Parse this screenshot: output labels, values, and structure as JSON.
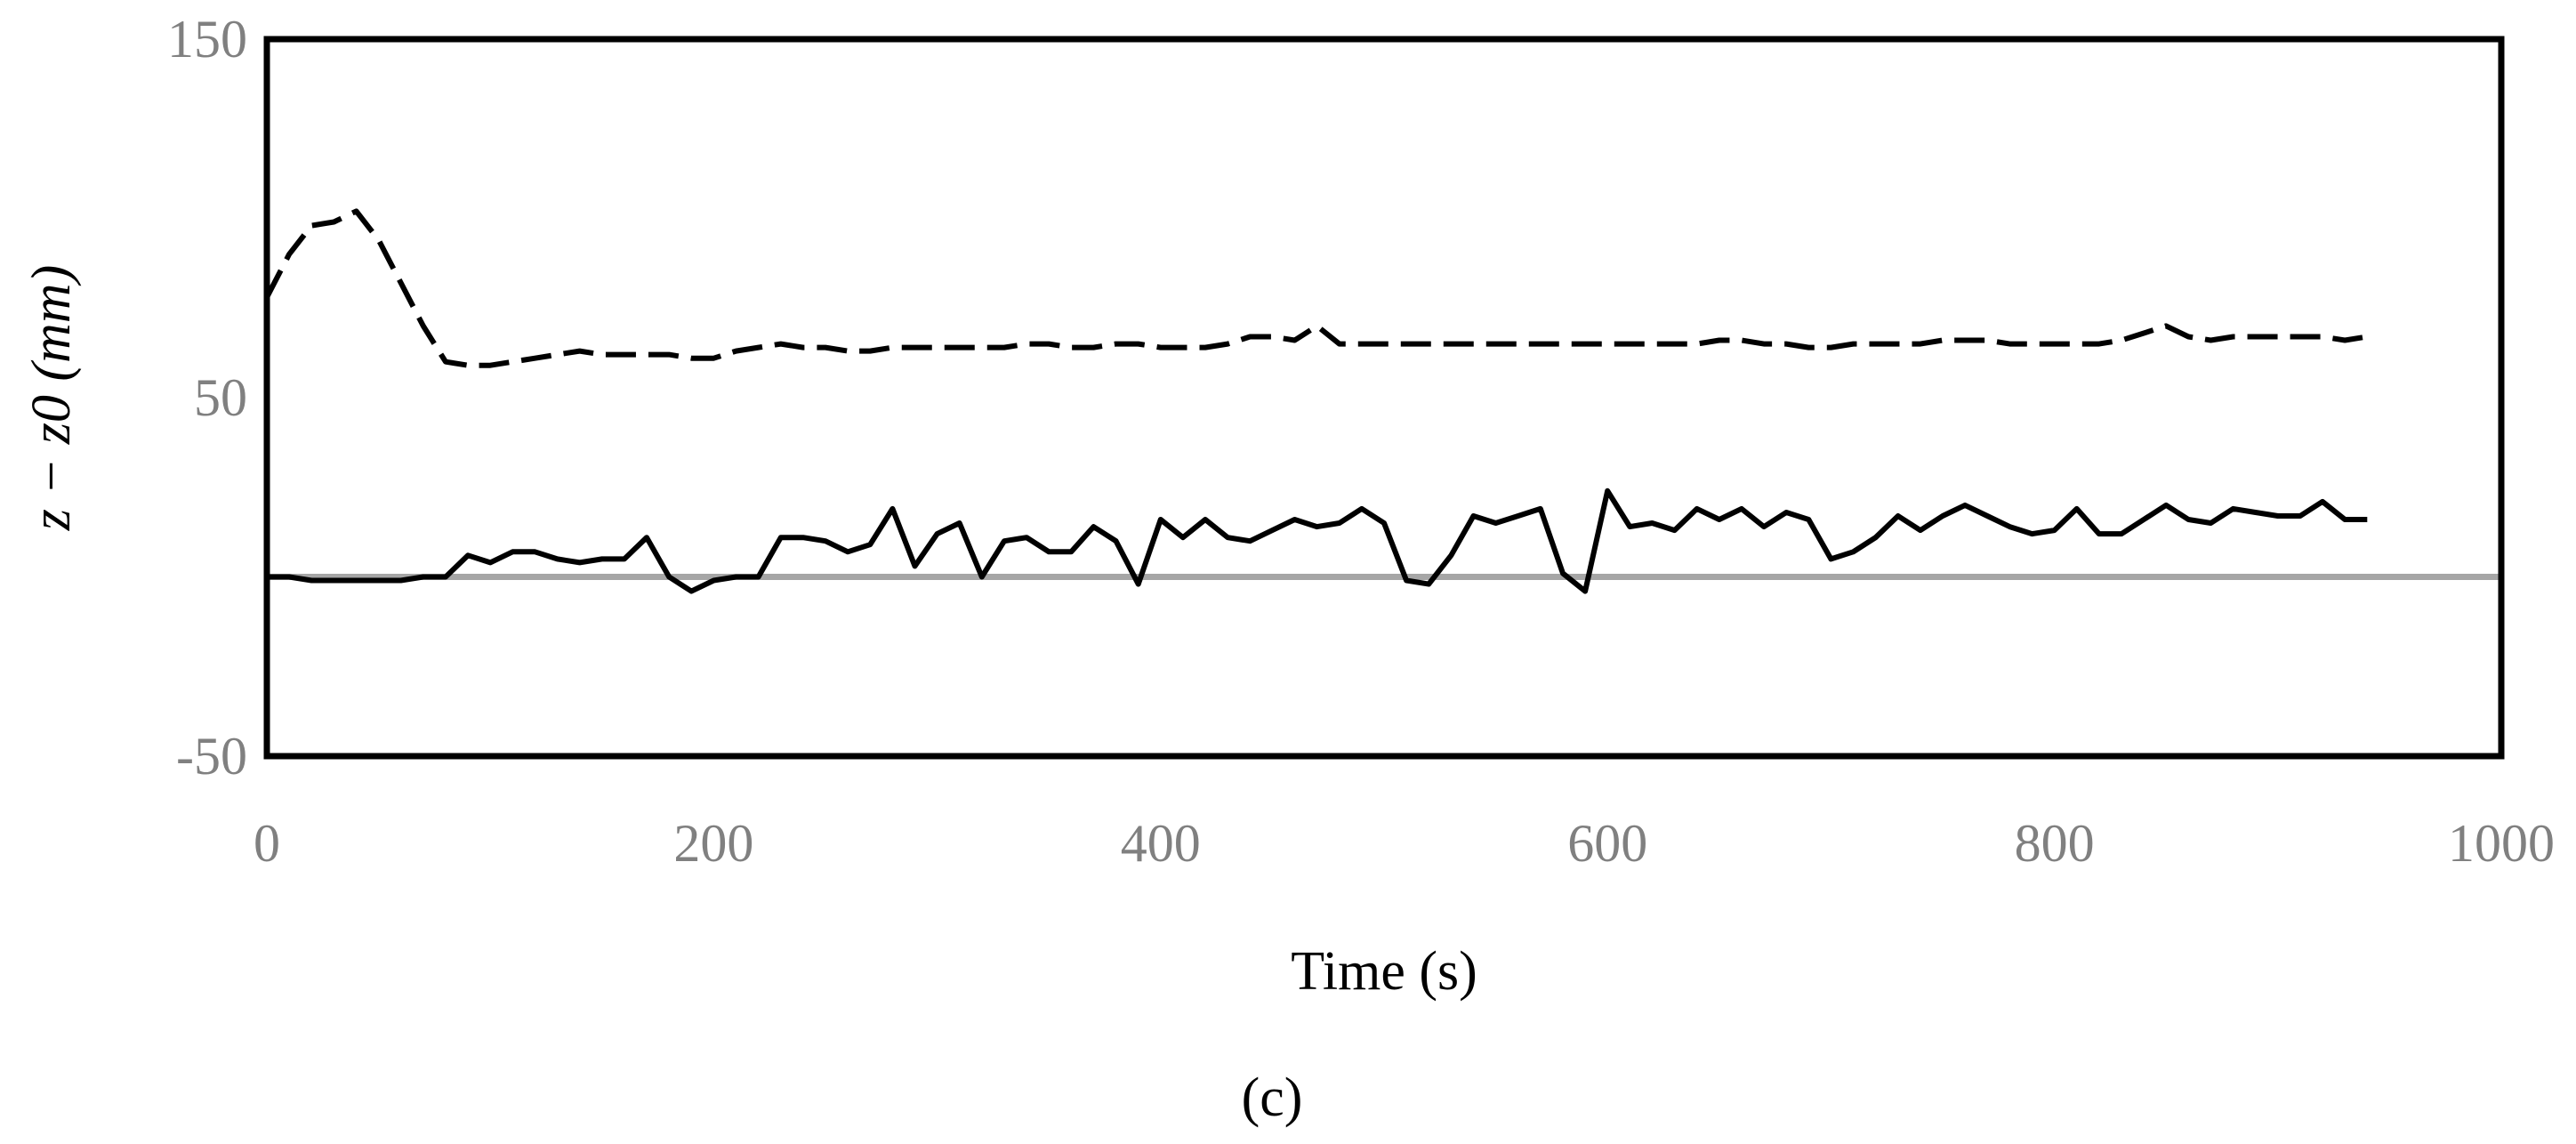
{
  "panel_label": "(c)",
  "chart_data": {
    "type": "line",
    "xlabel": "Time (s)",
    "ylabel": "z − z0 (mm)",
    "xlim": [
      0,
      1000
    ],
    "ylim": [
      -50,
      150
    ],
    "x_ticks": [
      "0",
      "200",
      "400",
      "600",
      "800",
      "1000"
    ],
    "y_ticks": [
      "-50",
      "50",
      "150"
    ],
    "grid": false,
    "series": [
      {
        "style": "dashed",
        "color": "#000000",
        "x": [
          0,
          10,
          20,
          30,
          40,
          50,
          60,
          70,
          80,
          90,
          100,
          110,
          120,
          130,
          140,
          150,
          160,
          170,
          180,
          190,
          200,
          210,
          220,
          230,
          240,
          250,
          260,
          270,
          280,
          290,
          300,
          310,
          320,
          330,
          340,
          350,
          360,
          370,
          380,
          390,
          400,
          410,
          420,
          430,
          440,
          450,
          460,
          470,
          480,
          490,
          500,
          510,
          520,
          530,
          540,
          550,
          560,
          570,
          580,
          590,
          600,
          610,
          620,
          630,
          640,
          650,
          660,
          670,
          680,
          690,
          700,
          710,
          720,
          730,
          740,
          750,
          760,
          770,
          780,
          790,
          800,
          810,
          820,
          830,
          840,
          850,
          860,
          870,
          880,
          890,
          900,
          910,
          920,
          930,
          940
        ],
        "values": [
          78,
          90,
          98,
          99,
          102,
          94,
          82,
          70,
          60,
          59,
          59,
          60,
          61,
          62,
          63,
          62,
          62,
          62,
          62,
          61,
          61,
          63,
          64,
          65,
          64,
          64,
          63,
          63,
          64,
          64,
          64,
          64,
          64,
          64,
          65,
          65,
          64,
          64,
          65,
          65,
          64,
          64,
          64,
          65,
          67,
          67,
          66,
          70,
          65,
          65,
          65,
          65,
          65,
          65,
          65,
          65,
          65,
          65,
          65,
          65,
          65,
          65,
          65,
          65,
          65,
          66,
          66,
          65,
          65,
          64,
          64,
          65,
          65,
          65,
          65,
          66,
          66,
          66,
          65,
          65,
          65,
          65,
          65,
          66,
          68,
          70,
          67,
          66,
          67,
          67,
          67,
          67,
          67,
          66,
          67
        ]
      },
      {
        "style": "solid",
        "color": "#000000",
        "x": [
          0,
          10,
          20,
          30,
          40,
          50,
          60,
          70,
          80,
          90,
          100,
          110,
          120,
          130,
          140,
          150,
          160,
          170,
          180,
          190,
          200,
          210,
          220,
          230,
          240,
          250,
          260,
          270,
          280,
          290,
          300,
          310,
          320,
          330,
          340,
          350,
          360,
          370,
          380,
          390,
          400,
          410,
          420,
          430,
          440,
          450,
          460,
          470,
          480,
          490,
          500,
          510,
          520,
          530,
          540,
          550,
          560,
          570,
          580,
          590,
          600,
          610,
          620,
          630,
          640,
          650,
          660,
          670,
          680,
          690,
          700,
          710,
          720,
          730,
          740,
          750,
          760,
          770,
          780,
          790,
          800,
          810,
          820,
          830,
          840,
          850,
          860,
          870,
          880,
          890,
          900,
          910,
          920,
          930,
          940
        ],
        "values": [
          0,
          0,
          -1,
          -1,
          -1,
          -1,
          -1,
          0,
          0,
          6,
          4,
          7,
          7,
          5,
          4,
          5,
          5,
          11,
          0,
          -4,
          -1,
          0,
          0,
          11,
          11,
          10,
          7,
          9,
          19,
          3,
          12,
          15,
          0,
          10,
          11,
          7,
          7,
          14,
          10,
          -2,
          16,
          11,
          16,
          11,
          10,
          13,
          16,
          14,
          15,
          19,
          15,
          -1,
          -2,
          6,
          17,
          15,
          17,
          19,
          1,
          -4,
          24,
          14,
          15,
          13,
          19,
          16,
          19,
          14,
          18,
          16,
          5,
          7,
          11,
          17,
          13,
          17,
          20,
          17,
          14,
          12,
          13,
          19,
          12,
          12,
          16,
          20,
          16,
          15,
          19,
          18,
          17,
          17,
          21,
          16,
          16
        ]
      },
      {
        "style": "solid",
        "color": "#a6a6a6",
        "x": [
          0,
          1000
        ],
        "values": [
          0,
          0
        ]
      }
    ]
  }
}
